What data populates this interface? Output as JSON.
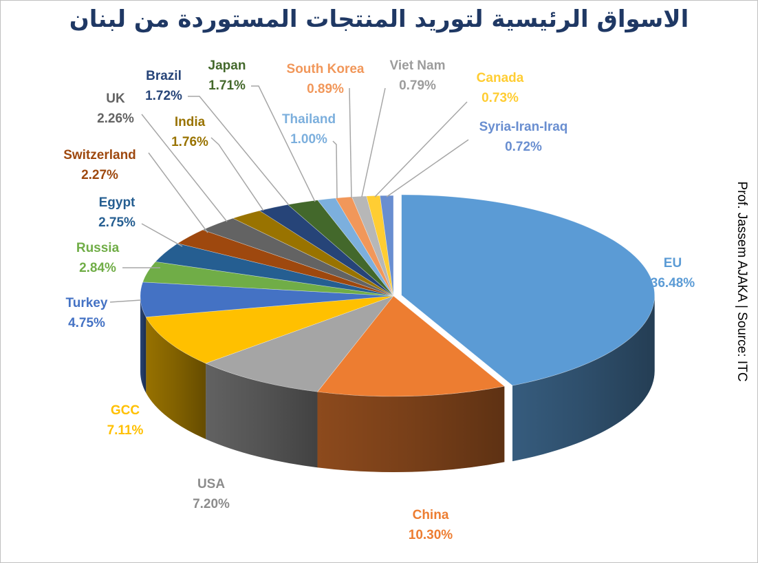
{
  "title": "الاسواق الرئيسية لتوريد المنتجات المستوردة من لبنان",
  "credit": "Prof. Jassem AJAKA | Source: ITC",
  "chart_data": {
    "type": "pie",
    "variant": "3d-exploded",
    "legend": "none",
    "slices": [
      {
        "name": "EU",
        "label": "36.48%",
        "value": 36.48,
        "color": "#5b9bd5"
      },
      {
        "name": "China",
        "label": "10.30%",
        "value": 10.3,
        "color": "#ed7d31"
      },
      {
        "name": "USA",
        "label": "7.20%",
        "value": 7.2,
        "color": "#a5a5a5"
      },
      {
        "name": "GCC",
        "label": "7.11%",
        "value": 7.11,
        "color": "#ffc000"
      },
      {
        "name": "Turkey",
        "label": "4.75%",
        "value": 4.75,
        "color": "#4472c4"
      },
      {
        "name": "Russia",
        "label": "2.84%",
        "value": 2.84,
        "color": "#70ad47"
      },
      {
        "name": "Egypt",
        "label": "2.75%",
        "value": 2.75,
        "color": "#255e91"
      },
      {
        "name": "Switzerland",
        "label": "2.27%",
        "value": 2.27,
        "color": "#9e480e"
      },
      {
        "name": "UK",
        "label": "2.26%",
        "value": 2.26,
        "color": "#636363"
      },
      {
        "name": "India",
        "label": "1.76%",
        "value": 1.76,
        "color": "#997300"
      },
      {
        "name": "Brazil",
        "label": "1.72%",
        "value": 1.72,
        "color": "#264478"
      },
      {
        "name": "Japan",
        "label": "1.71%",
        "value": 1.71,
        "color": "#43682b"
      },
      {
        "name": "Thailand",
        "label": "1.00%",
        "value": 1.0,
        "color": "#7cafdd"
      },
      {
        "name": "South Korea",
        "label": "0.89%",
        "value": 0.89,
        "color": "#f1975a"
      },
      {
        "name": "Viet Nam",
        "label": "0.79%",
        "value": 0.79,
        "color": "#b7b7b7"
      },
      {
        "name": "Canada",
        "label": "0.73%",
        "value": 0.73,
        "color": "#ffcd33"
      },
      {
        "name": "Syria-Iran-Iraq",
        "label": "0.72%",
        "value": 0.72,
        "color": "#698ed0"
      }
    ]
  }
}
